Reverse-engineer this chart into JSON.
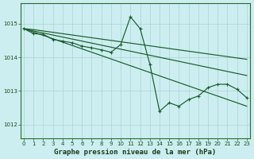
{
  "xlabel": "Graphe pression niveau de la mer (hPa)",
  "bg_color": "#cceef0",
  "grid_color": "#aad4d4",
  "line_color": "#1a5c2a",
  "yticks": [
    1012,
    1013,
    1014,
    1015
  ],
  "xticks": [
    0,
    1,
    2,
    3,
    4,
    5,
    6,
    7,
    8,
    9,
    10,
    11,
    12,
    13,
    14,
    15,
    16,
    17,
    18,
    19,
    20,
    21,
    22,
    23
  ],
  "ylim": [
    1011.6,
    1015.6
  ],
  "xlim": [
    -0.3,
    23.3
  ],
  "lines": [
    {
      "x": [
        0,
        1,
        2,
        3,
        4,
        5,
        6,
        7,
        8,
        9,
        10,
        11,
        12,
        13,
        14,
        15,
        16,
        17,
        18,
        19,
        20,
        21,
        22,
        23
      ],
      "y": [
        1014.85,
        1014.82,
        1014.78,
        1014.74,
        1014.7,
        1014.66,
        1014.62,
        1014.58,
        1014.54,
        1014.5,
        1014.46,
        1014.42,
        1014.38,
        1014.34,
        1014.3,
        1014.26,
        1014.22,
        1014.18,
        1014.14,
        1014.1,
        1014.06,
        1014.02,
        1013.98,
        1013.94
      ],
      "marker": false
    },
    {
      "x": [
        0,
        1,
        2,
        3,
        4,
        5,
        6,
        7,
        8,
        9,
        10,
        11,
        12,
        13,
        14,
        15,
        16,
        17,
        18,
        19,
        20,
        21,
        22,
        23
      ],
      "y": [
        1014.85,
        1014.75,
        1014.65,
        1014.55,
        1014.45,
        1014.35,
        1014.25,
        1014.15,
        1014.05,
        1013.95,
        1013.85,
        1013.75,
        1013.65,
        1013.55,
        1013.45,
        1013.35,
        1013.25,
        1013.15,
        1013.05,
        1012.95,
        1012.85,
        1012.75,
        1012.65,
        1012.55
      ],
      "marker": false
    },
    {
      "x": [
        0,
        1,
        2,
        3,
        4,
        5,
        6,
        7,
        8,
        9,
        10,
        11,
        12,
        13,
        14,
        15,
        16,
        17,
        18,
        19,
        20,
        21,
        22,
        23
      ],
      "y": [
        1014.85,
        1014.78,
        1014.72,
        1014.66,
        1014.6,
        1014.54,
        1014.48,
        1014.42,
        1014.36,
        1014.3,
        1014.24,
        1014.18,
        1014.12,
        1014.06,
        1014.0,
        1013.94,
        1013.88,
        1013.82,
        1013.76,
        1013.7,
        1013.64,
        1013.58,
        1013.52,
        1013.46
      ],
      "marker": false
    },
    {
      "x": [
        0,
        1,
        2,
        3,
        4,
        5,
        6,
        7,
        8,
        9,
        10,
        11,
        12,
        13,
        14,
        15,
        16,
        17,
        18,
        19,
        20,
        21,
        22,
        23
      ],
      "y": [
        1014.85,
        1014.7,
        1014.68,
        1014.53,
        1014.48,
        1014.43,
        1014.33,
        1014.28,
        1014.22,
        1014.15,
        1014.38,
        1015.2,
        1014.85,
        1013.8,
        1012.4,
        1012.65,
        1012.55,
        1012.75,
        1012.85,
        1013.1,
        1013.2,
        1013.2,
        1013.05,
        1012.8
      ],
      "marker": true
    }
  ]
}
